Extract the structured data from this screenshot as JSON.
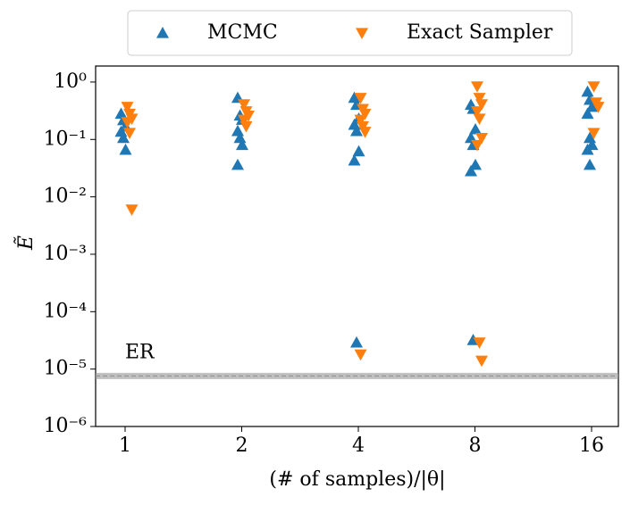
{
  "chart_data": {
    "type": "scatter",
    "xlabel": "(# of samples)/|θ|",
    "ylabel": "Ẽ",
    "categories": [
      "1",
      "2",
      "4",
      "8",
      "16"
    ],
    "series": [
      {
        "name": "MCMC",
        "color": "#1f77b4",
        "marker": "^",
        "values": [
          [
            0.28,
            0.216,
            0.168,
            0.136,
            0.106,
            0.066
          ],
          [
            0.53,
            0.26,
            0.22,
            0.14,
            0.106,
            0.08,
            0.036
          ],
          [
            0.53,
            0.4,
            0.23,
            0.18,
            0.14,
            0.062,
            0.043,
            2.9e-05
          ],
          [
            0.4,
            0.34,
            0.15,
            0.106,
            0.08,
            0.036,
            0.028,
            3.2e-05
          ],
          [
            0.68,
            0.49,
            0.37,
            0.28,
            0.106,
            0.08,
            0.066,
            0.036
          ]
        ]
      },
      {
        "name": "Exact Sampler",
        "color": "#ff7f0e",
        "marker": "v",
        "values": [
          [
            0.37,
            0.28,
            0.23,
            0.2,
            0.13,
            0.006
          ],
          [
            0.41,
            0.31,
            0.26,
            0.22,
            0.17
          ],
          [
            0.53,
            0.34,
            0.28,
            0.22,
            0.17,
            0.136,
            1.8e-05
          ],
          [
            0.84,
            0.53,
            0.41,
            0.31,
            0.23,
            0.106,
            0.08,
            2.9e-05,
            1.4e-05
          ],
          [
            0.84,
            0.44,
            0.37,
            0.13
          ]
        ]
      }
    ],
    "hline": {
      "value": 7.6e-06,
      "label": "ER",
      "color": "#999999"
    },
    "ylog": true,
    "ylim": [
      1e-06,
      1.9
    ],
    "yticks": [
      {
        "value": 1,
        "label": "10⁰"
      },
      {
        "value": 0.1,
        "label": "10⁻¹"
      },
      {
        "value": 0.01,
        "label": "10⁻²"
      },
      {
        "value": 0.001,
        "label": "10⁻³"
      },
      {
        "value": 0.0001,
        "label": "10⁻⁴"
      },
      {
        "value": 1e-05,
        "label": "10⁻⁵"
      },
      {
        "value": 1e-06,
        "label": "10⁻⁶"
      }
    ],
    "legend": "top"
  }
}
